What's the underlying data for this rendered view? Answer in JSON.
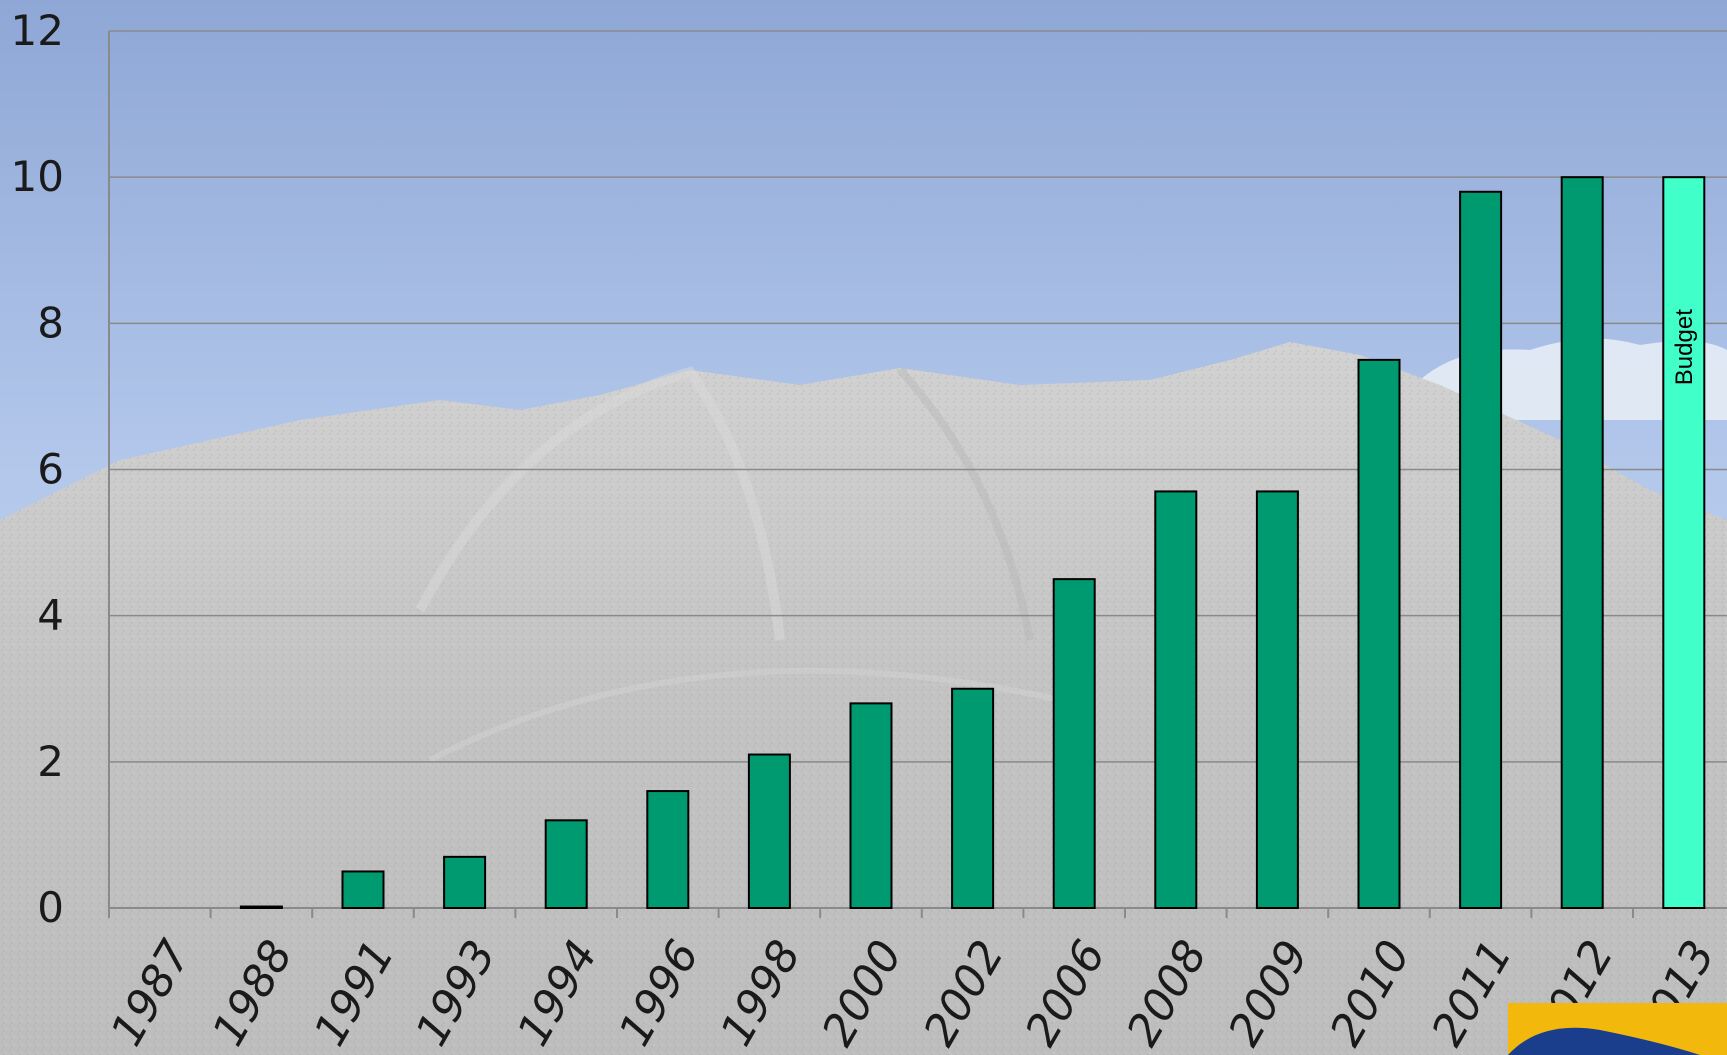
{
  "chart_data": {
    "type": "bar",
    "title": "",
    "xlabel": "",
    "ylabel": "",
    "ylim": [
      0,
      12
    ],
    "yticks": [
      0,
      2,
      4,
      6,
      8,
      10,
      12
    ],
    "grid": true,
    "categories": [
      "1987",
      "1988",
      "1991",
      "1993",
      "1994",
      "1996",
      "1998",
      "2000",
      "2002",
      "2006",
      "2008",
      "2009",
      "2010",
      "2011",
      "2012",
      "2013"
    ],
    "series": [
      {
        "values": [
          0,
          0.02,
          0.5,
          0.7,
          1.2,
          1.6,
          2.1,
          2.8,
          3.0,
          4.5,
          5.7,
          5.7,
          7.5,
          9.8,
          10.0,
          10.0
        ]
      }
    ],
    "budget_category": "2013",
    "annotation": "Budget",
    "colors": {
      "bar": "#009a70",
      "budget_bar": "#40ffc8",
      "grid": "#8a8a8a",
      "text": "#1a1a1a",
      "sky_top": "#93abd8",
      "sky_bottom": "#b9cdea",
      "gravel": "#c9c9c9"
    }
  }
}
